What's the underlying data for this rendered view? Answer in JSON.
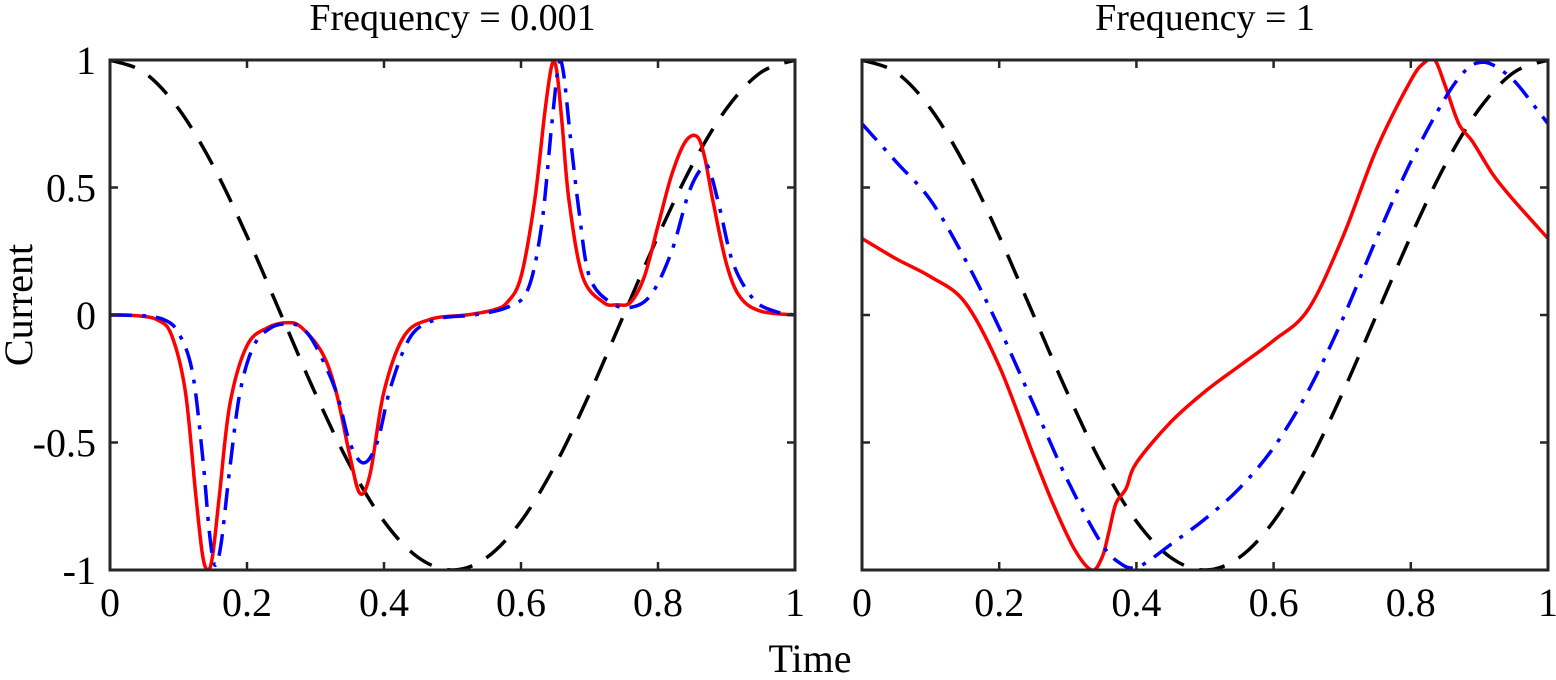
{
  "figure": {
    "xlabel": "Time",
    "ylabel": "Current"
  },
  "chart_data": [
    {
      "type": "line",
      "title": "Frequency = 0.001",
      "xlabel": "Time",
      "ylabel": "Current",
      "xlim": [
        0,
        1
      ],
      "ylim": [
        -1,
        1
      ],
      "x_ticks": [
        "0",
        "0.2",
        "0.4",
        "0.6",
        "0.8",
        "1"
      ],
      "y_ticks": [
        "1",
        "0.5",
        "0",
        "-0.5",
        "-1"
      ],
      "grid": false,
      "legend": "none",
      "series": [
        {
          "color": "#000000",
          "style": "dashed",
          "x": [
            0,
            0.05,
            0.1,
            0.15,
            0.2,
            0.25,
            0.3,
            0.35,
            0.4,
            0.45,
            0.5,
            0.55,
            0.6,
            0.65,
            0.7,
            0.75,
            0.8,
            0.85,
            0.9,
            0.95,
            1
          ],
          "y": [
            1,
            0.951,
            0.809,
            0.588,
            0.309,
            0,
            -0.309,
            -0.588,
            -0.809,
            -0.951,
            -1,
            -0.951,
            -0.809,
            -0.588,
            -0.309,
            0,
            0.309,
            0.588,
            0.809,
            0.951,
            1
          ]
        },
        {
          "color": "#ff0000",
          "style": "solid",
          "x": [
            0,
            0.04,
            0.07,
            0.09,
            0.11,
            0.125,
            0.135,
            0.143,
            0.15,
            0.16,
            0.175,
            0.2,
            0.23,
            0.26,
            0.28,
            0.31,
            0.33,
            0.35,
            0.365,
            0.38,
            0.4,
            0.43,
            0.47,
            0.52,
            0.56,
            0.58,
            0.6,
            0.62,
            0.635,
            0.645,
            0.652,
            0.66,
            0.67,
            0.69,
            0.72,
            0.74,
            0.76,
            0.78,
            0.8,
            0.82,
            0.84,
            0.857,
            0.868,
            0.88,
            0.9,
            0.92,
            0.95,
            1
          ],
          "y": [
            0,
            -0.003,
            -0.02,
            -0.08,
            -0.3,
            -0.7,
            -0.94,
            -1,
            -0.94,
            -0.7,
            -0.35,
            -0.12,
            -0.05,
            -0.03,
            -0.05,
            -0.15,
            -0.3,
            -0.55,
            -0.7,
            -0.62,
            -0.3,
            -0.08,
            -0.015,
            0,
            0.02,
            0.05,
            0.15,
            0.45,
            0.8,
            0.98,
            0.96,
            0.75,
            0.45,
            0.15,
            0.05,
            0.04,
            0.05,
            0.15,
            0.35,
            0.55,
            0.68,
            0.7,
            0.62,
            0.45,
            0.2,
            0.07,
            0.015,
            0
          ]
        },
        {
          "color": "#0000ff",
          "style": "dashdot",
          "x": [
            0,
            0.05,
            0.08,
            0.1,
            0.12,
            0.135,
            0.145,
            0.153,
            0.162,
            0.175,
            0.19,
            0.21,
            0.235,
            0.26,
            0.28,
            0.3,
            0.33,
            0.35,
            0.37,
            0.39,
            0.41,
            0.44,
            0.48,
            0.53,
            0.58,
            0.61,
            0.63,
            0.645,
            0.655,
            0.662,
            0.672,
            0.685,
            0.7,
            0.73,
            0.76,
            0.79,
            0.82,
            0.845,
            0.865,
            0.875,
            0.89,
            0.91,
            0.94,
            0.97,
            1
          ],
          "y": [
            0,
            -0.003,
            -0.02,
            -0.07,
            -0.22,
            -0.55,
            -0.85,
            -0.98,
            -0.9,
            -0.6,
            -0.3,
            -0.12,
            -0.05,
            -0.035,
            -0.05,
            -0.12,
            -0.3,
            -0.5,
            -0.58,
            -0.5,
            -0.28,
            -0.08,
            -0.015,
            0,
            0.03,
            0.1,
            0.35,
            0.75,
            0.98,
            0.95,
            0.7,
            0.4,
            0.15,
            0.05,
            0.03,
            0.08,
            0.25,
            0.48,
            0.58,
            0.57,
            0.42,
            0.2,
            0.06,
            0.015,
            0
          ]
        }
      ]
    },
    {
      "type": "line",
      "title": "Frequency = 1",
      "xlabel": "Time",
      "ylabel": "",
      "xlim": [
        0,
        1
      ],
      "ylim": [
        -1,
        1
      ],
      "x_ticks": [
        "0",
        "0.2",
        "0.4",
        "0.6",
        "0.8",
        "1"
      ],
      "y_ticks": [],
      "grid": false,
      "legend": "none",
      "series": [
        {
          "color": "#000000",
          "style": "dashed",
          "x": [
            0,
            0.05,
            0.1,
            0.15,
            0.2,
            0.25,
            0.3,
            0.35,
            0.4,
            0.45,
            0.5,
            0.55,
            0.6,
            0.65,
            0.7,
            0.75,
            0.8,
            0.85,
            0.9,
            0.95,
            1
          ],
          "y": [
            1,
            0.951,
            0.809,
            0.588,
            0.309,
            0,
            -0.309,
            -0.588,
            -0.809,
            -0.951,
            -1,
            -0.951,
            -0.809,
            -0.588,
            -0.309,
            0,
            0.309,
            0.588,
            0.809,
            0.951,
            1
          ]
        },
        {
          "color": "#ff0000",
          "style": "solid",
          "x": [
            0,
            0.05,
            0.1,
            0.15,
            0.2,
            0.25,
            0.28,
            0.31,
            0.335,
            0.35,
            0.36,
            0.37,
            0.385,
            0.4,
            0.45,
            0.5,
            0.55,
            0.6,
            0.65,
            0.7,
            0.75,
            0.8,
            0.82,
            0.835,
            0.85,
            0.87,
            0.89,
            0.92,
            0.95,
            1
          ],
          "y": [
            0.3,
            0.22,
            0.15,
            0.05,
            -0.2,
            -0.55,
            -0.75,
            -0.92,
            -1,
            -0.95,
            -0.85,
            -0.74,
            -0.68,
            -0.58,
            -0.42,
            -0.3,
            -0.2,
            -0.1,
            0.02,
            0.3,
            0.65,
            0.92,
            0.99,
            1,
            0.9,
            0.75,
            0.68,
            0.55,
            0.45,
            0.3
          ]
        },
        {
          "color": "#0000ff",
          "style": "dashdot",
          "x": [
            0,
            0.05,
            0.1,
            0.15,
            0.2,
            0.25,
            0.3,
            0.35,
            0.38,
            0.4,
            0.42,
            0.45,
            0.5,
            0.55,
            0.6,
            0.65,
            0.7,
            0.75,
            0.8,
            0.85,
            0.88,
            0.9,
            0.92,
            0.95,
            0.98,
            1
          ],
          "y": [
            0.75,
            0.6,
            0.45,
            0.22,
            -0.05,
            -0.35,
            -0.65,
            -0.9,
            -0.98,
            -0.99,
            -0.96,
            -0.9,
            -0.8,
            -0.68,
            -0.52,
            -0.3,
            -0.02,
            0.3,
            0.6,
            0.85,
            0.96,
            0.99,
            0.98,
            0.92,
            0.82,
            0.75
          ]
        }
      ]
    }
  ]
}
